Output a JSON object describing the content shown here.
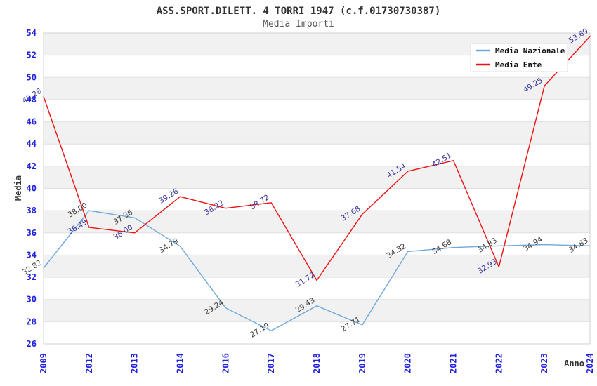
{
  "title": "ASS.SPORT.DILETT. 4 TORRI 1947 (c.f.01730730387)",
  "subtitle": "Media Importi",
  "chart_data": {
    "type": "line",
    "x": [
      2009,
      2012,
      2013,
      2014,
      2016,
      2017,
      2018,
      2019,
      2020,
      2021,
      2022,
      2023,
      2024
    ],
    "x_axis_note": "categorical, evenly spaced ticks, labels rotated vertical",
    "xlabel": "Anno",
    "ylabel": "Media",
    "ylim": [
      26,
      54
    ],
    "yticks": [
      26,
      28,
      30,
      32,
      34,
      36,
      38,
      40,
      42,
      44,
      46,
      48,
      50,
      52,
      54
    ],
    "grid": "horizontal gridlines every 2 units with alternating gray/white bands",
    "legend_position": "top-right inside plot",
    "series": [
      {
        "name": "Media Nazionale",
        "color": "#6fa8dc",
        "label_color": "#3c3c3c",
        "values": [
          32.82,
          38.0,
          37.36,
          34.79,
          29.24,
          27.19,
          29.43,
          27.71,
          34.32,
          34.68,
          34.83,
          34.94,
          34.83
        ],
        "labels": [
          "32.82",
          "38.00",
          "37.36",
          "34.79",
          "29.24",
          "27.19",
          "29.43",
          "27.71",
          "34.32",
          "34.68",
          "34.83",
          "34.94",
          "34.83"
        ]
      },
      {
        "name": "Media Ente",
        "color": "#ee1111",
        "label_color": "#333399",
        "values": [
          48.28,
          36.49,
          36.0,
          39.26,
          38.22,
          38.72,
          31.72,
          37.68,
          41.54,
          42.51,
          32.93,
          49.25,
          53.69
        ],
        "labels": [
          "48.28",
          "36.49",
          "36.00",
          "39.26",
          "38.22",
          "38.72",
          "31.72",
          "37.68",
          "41.54",
          "42.51",
          "32.93",
          "49.25",
          "53.69"
        ]
      }
    ]
  },
  "colors": {
    "band_gray": "#f1f1f1",
    "gridline": "#e0e0e0",
    "plot_border": "#d0d0d0",
    "tick_label_blue": "#2222dd",
    "title_text": "#333333",
    "legend_bg": "#ffffff",
    "legend_border": "#e2e2e2"
  }
}
